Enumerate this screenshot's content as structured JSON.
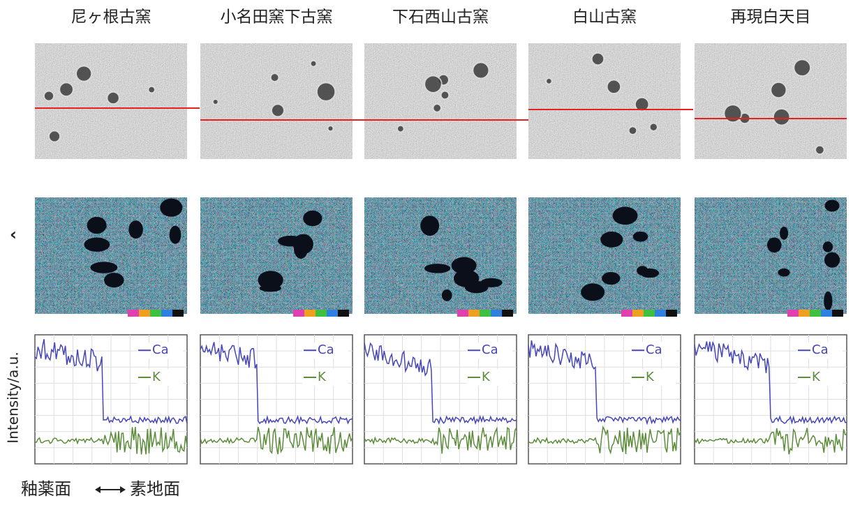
{
  "columns": [
    {
      "title": "尼ヶ根古窯",
      "legend": [
        "Ca",
        "K"
      ]
    },
    {
      "title": "小名田窯下古窯",
      "legend": [
        "Ca",
        "K"
      ]
    },
    {
      "title": "下石西山古窯",
      "legend": [
        "Ca",
        "K"
      ]
    },
    {
      "title": "白山古窯",
      "legend": [
        "Ca",
        "K"
      ]
    },
    {
      "title": "再現白天目",
      "legend": [
        "Ca",
        "K"
      ]
    }
  ],
  "y_axis_label": "Intensity/a.u.",
  "footer": {
    "left": "釉薬面",
    "right": "素地面"
  }
}
